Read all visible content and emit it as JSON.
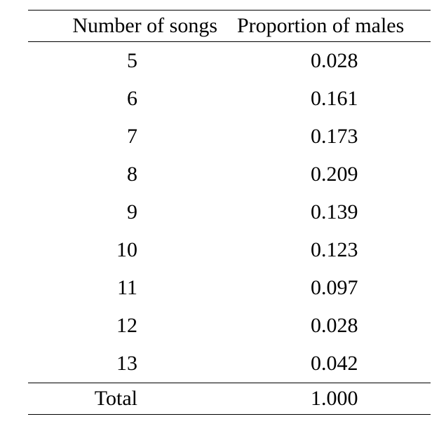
{
  "table": {
    "headers": [
      "Number of songs",
      "Proportion of males"
    ],
    "rows": [
      [
        "5",
        "0.028"
      ],
      [
        "6",
        "0.161"
      ],
      [
        "7",
        "0.173"
      ],
      [
        "8",
        "0.209"
      ],
      [
        "9",
        "0.139"
      ],
      [
        "10",
        "0.123"
      ],
      [
        "11",
        "0.097"
      ],
      [
        "12",
        "0.028"
      ],
      [
        "13",
        "0.042"
      ]
    ],
    "total": [
      "Total",
      "1.000"
    ]
  }
}
